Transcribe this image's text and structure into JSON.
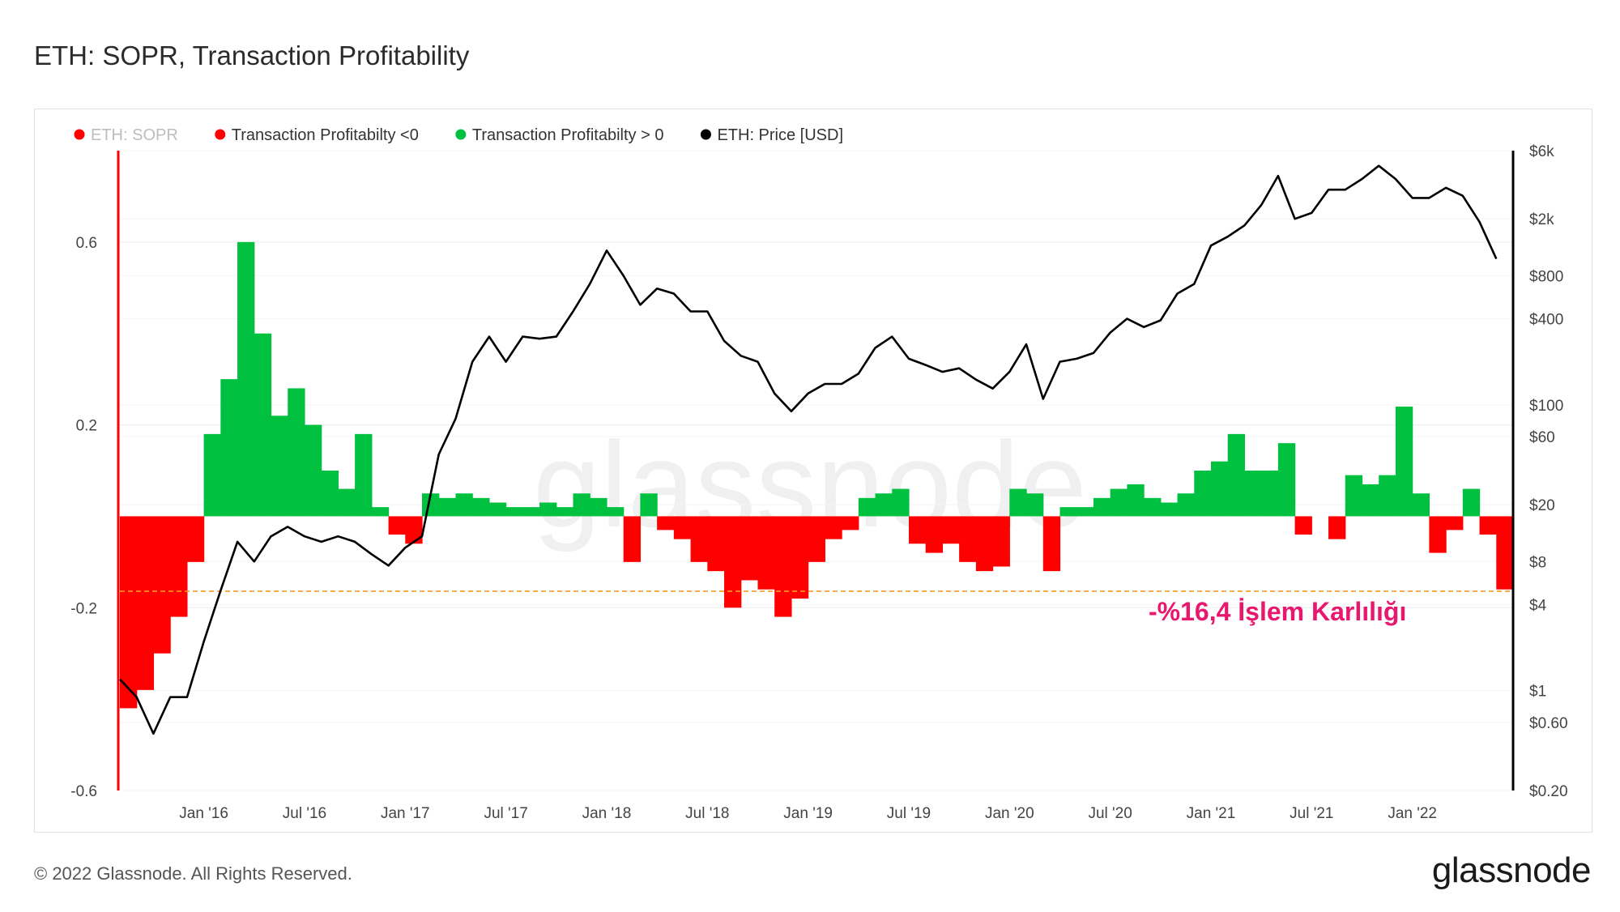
{
  "title": "ETH: SOPR, Transaction Profitability",
  "footer": {
    "copyright": "© 2022 Glassnode. All Rights Reserved.",
    "brand": "glassnode"
  },
  "watermark": "glassnode",
  "colors": {
    "negative": "#ff0000",
    "positive": "#00c040",
    "price": "#000000",
    "sopr": "#ff0000",
    "annotation": "#e8186e",
    "threshold": "#f59a23"
  },
  "chart_data": {
    "type": "bar",
    "legend": [
      {
        "name": "ETH: SOPR",
        "color": "#ff0000",
        "muted": true
      },
      {
        "name": "Transaction Profitabilty <0",
        "color": "#ff0000",
        "muted": false
      },
      {
        "name": "Transaction Profitabilty > 0",
        "color": "#00c040",
        "muted": false
      },
      {
        "name": "ETH: Price [USD]",
        "color": "#000000",
        "muted": false
      }
    ],
    "legend_position": "top-left",
    "x_ticks": [
      "Jan '16",
      "Jul '16",
      "Jan '17",
      "Jul '17",
      "Jan '18",
      "Jul '18",
      "Jan '19",
      "Jul '19",
      "Jan '20",
      "Jul '20",
      "Jan '21",
      "Jul '21",
      "Jan '22"
    ],
    "x_range": [
      "2015-08",
      "2022-07"
    ],
    "y_left": {
      "ticks": [
        "0.6",
        "0.2",
        "-0.2",
        "-0.6"
      ],
      "range": [
        -0.6,
        0.8
      ]
    },
    "y_right": {
      "scale": "log",
      "ticks": [
        "$6k",
        "$2k",
        "$800",
        "$400",
        "$100",
        "$60",
        "$20",
        "$8",
        "$4",
        "$1",
        "$0.60",
        "$0.20"
      ]
    },
    "threshold": {
      "value": -0.164,
      "label": "-%16,4 İşlem Karlılığı"
    },
    "profitability": [
      [
        "2015-08",
        -0.42
      ],
      [
        "2015-09",
        -0.38
      ],
      [
        "2015-10",
        -0.3
      ],
      [
        "2015-11",
        -0.22
      ],
      [
        "2015-12",
        -0.1
      ],
      [
        "2016-01",
        0.18
      ],
      [
        "2016-02",
        0.3
      ],
      [
        "2016-03",
        0.6
      ],
      [
        "2016-04",
        0.4
      ],
      [
        "2016-05",
        0.22
      ],
      [
        "2016-06",
        0.28
      ],
      [
        "2016-07",
        0.2
      ],
      [
        "2016-08",
        0.1
      ],
      [
        "2016-09",
        0.06
      ],
      [
        "2016-10",
        0.18
      ],
      [
        "2016-11",
        0.02
      ],
      [
        "2016-12",
        -0.04
      ],
      [
        "2017-01",
        -0.06
      ],
      [
        "2017-02",
        0.05
      ],
      [
        "2017-03",
        0.04
      ],
      [
        "2017-04",
        0.05
      ],
      [
        "2017-05",
        0.04
      ],
      [
        "2017-06",
        0.03
      ],
      [
        "2017-07",
        0.02
      ],
      [
        "2017-08",
        0.02
      ],
      [
        "2017-09",
        0.03
      ],
      [
        "2017-10",
        0.02
      ],
      [
        "2017-11",
        0.05
      ],
      [
        "2017-12",
        0.04
      ],
      [
        "2018-01",
        0.02
      ],
      [
        "2018-02",
        -0.1
      ],
      [
        "2018-03",
        0.05
      ],
      [
        "2018-04",
        -0.03
      ],
      [
        "2018-05",
        -0.05
      ],
      [
        "2018-06",
        -0.1
      ],
      [
        "2018-07",
        -0.12
      ],
      [
        "2018-08",
        -0.2
      ],
      [
        "2018-09",
        -0.14
      ],
      [
        "2018-10",
        -0.16
      ],
      [
        "2018-11",
        -0.22
      ],
      [
        "2018-12",
        -0.18
      ],
      [
        "2019-01",
        -0.1
      ],
      [
        "2019-02",
        -0.05
      ],
      [
        "2019-03",
        -0.03
      ],
      [
        "2019-04",
        0.04
      ],
      [
        "2019-05",
        0.05
      ],
      [
        "2019-06",
        0.06
      ],
      [
        "2019-07",
        -0.06
      ],
      [
        "2019-08",
        -0.08
      ],
      [
        "2019-09",
        -0.06
      ],
      [
        "2019-10",
        -0.1
      ],
      [
        "2019-11",
        -0.12
      ],
      [
        "2019-12",
        -0.11
      ],
      [
        "2020-01",
        0.06
      ],
      [
        "2020-02",
        0.05
      ],
      [
        "2020-03",
        -0.12
      ],
      [
        "2020-04",
        0.02
      ],
      [
        "2020-05",
        0.02
      ],
      [
        "2020-06",
        0.04
      ],
      [
        "2020-07",
        0.06
      ],
      [
        "2020-08",
        0.07
      ],
      [
        "2020-09",
        0.04
      ],
      [
        "2020-10",
        0.03
      ],
      [
        "2020-11",
        0.05
      ],
      [
        "2020-12",
        0.1
      ],
      [
        "2021-01",
        0.12
      ],
      [
        "2021-02",
        0.18
      ],
      [
        "2021-03",
        0.1
      ],
      [
        "2021-04",
        0.1
      ],
      [
        "2021-05",
        0.16
      ],
      [
        "2021-06",
        -0.04
      ],
      [
        "2021-07",
        0.0
      ],
      [
        "2021-08",
        -0.05
      ],
      [
        "2021-09",
        0.09
      ],
      [
        "2021-10",
        0.07
      ],
      [
        "2021-11",
        0.09
      ],
      [
        "2021-12",
        0.24
      ],
      [
        "2022-01",
        0.05
      ],
      [
        "2022-02",
        -0.08
      ],
      [
        "2022-03",
        -0.03
      ],
      [
        "2022-04",
        0.06
      ],
      [
        "2022-05",
        -0.04
      ],
      [
        "2022-06",
        -0.16
      ]
    ],
    "price_usd": [
      [
        "2015-08",
        1.2
      ],
      [
        "2015-09",
        0.9
      ],
      [
        "2015-10",
        0.5
      ],
      [
        "2015-11",
        0.9
      ],
      [
        "2015-12",
        0.9
      ],
      [
        "2016-01",
        2.2
      ],
      [
        "2016-02",
        5.0
      ],
      [
        "2016-03",
        11
      ],
      [
        "2016-04",
        8
      ],
      [
        "2016-05",
        12
      ],
      [
        "2016-06",
        14
      ],
      [
        "2016-07",
        12
      ],
      [
        "2016-08",
        11
      ],
      [
        "2016-09",
        12
      ],
      [
        "2016-10",
        11
      ],
      [
        "2016-11",
        9
      ],
      [
        "2016-12",
        7.5
      ],
      [
        "2017-01",
        10
      ],
      [
        "2017-02",
        12
      ],
      [
        "2017-03",
        45
      ],
      [
        "2017-04",
        80
      ],
      [
        "2017-05",
        200
      ],
      [
        "2017-06",
        300
      ],
      [
        "2017-07",
        200
      ],
      [
        "2017-08",
        300
      ],
      [
        "2017-09",
        290
      ],
      [
        "2017-10",
        300
      ],
      [
        "2017-11",
        450
      ],
      [
        "2017-12",
        700
      ],
      [
        "2018-01",
        1200
      ],
      [
        "2018-02",
        800
      ],
      [
        "2018-03",
        500
      ],
      [
        "2018-04",
        650
      ],
      [
        "2018-05",
        600
      ],
      [
        "2018-06",
        450
      ],
      [
        "2018-07",
        450
      ],
      [
        "2018-08",
        280
      ],
      [
        "2018-09",
        220
      ],
      [
        "2018-10",
        200
      ],
      [
        "2018-11",
        120
      ],
      [
        "2018-12",
        90
      ],
      [
        "2019-01",
        120
      ],
      [
        "2019-02",
        140
      ],
      [
        "2019-03",
        140
      ],
      [
        "2019-04",
        165
      ],
      [
        "2019-05",
        250
      ],
      [
        "2019-06",
        300
      ],
      [
        "2019-07",
        210
      ],
      [
        "2019-08",
        190
      ],
      [
        "2019-09",
        170
      ],
      [
        "2019-10",
        180
      ],
      [
        "2019-11",
        150
      ],
      [
        "2019-12",
        130
      ],
      [
        "2020-01",
        170
      ],
      [
        "2020-02",
        265
      ],
      [
        "2020-03",
        110
      ],
      [
        "2020-04",
        200
      ],
      [
        "2020-05",
        210
      ],
      [
        "2020-06",
        230
      ],
      [
        "2020-07",
        320
      ],
      [
        "2020-08",
        400
      ],
      [
        "2020-09",
        350
      ],
      [
        "2020-10",
        390
      ],
      [
        "2020-11",
        600
      ],
      [
        "2020-12",
        700
      ],
      [
        "2021-01",
        1300
      ],
      [
        "2021-02",
        1500
      ],
      [
        "2021-03",
        1800
      ],
      [
        "2021-04",
        2500
      ],
      [
        "2021-05",
        4000
      ],
      [
        "2021-06",
        2000
      ],
      [
        "2021-07",
        2200
      ],
      [
        "2021-08",
        3200
      ],
      [
        "2021-09",
        3200
      ],
      [
        "2021-10",
        3800
      ],
      [
        "2021-11",
        4700
      ],
      [
        "2021-12",
        3800
      ],
      [
        "2022-01",
        2800
      ],
      [
        "2022-02",
        2800
      ],
      [
        "2022-03",
        3300
      ],
      [
        "2022-04",
        2900
      ],
      [
        "2022-05",
        1900
      ],
      [
        "2022-06",
        1050
      ]
    ]
  }
}
